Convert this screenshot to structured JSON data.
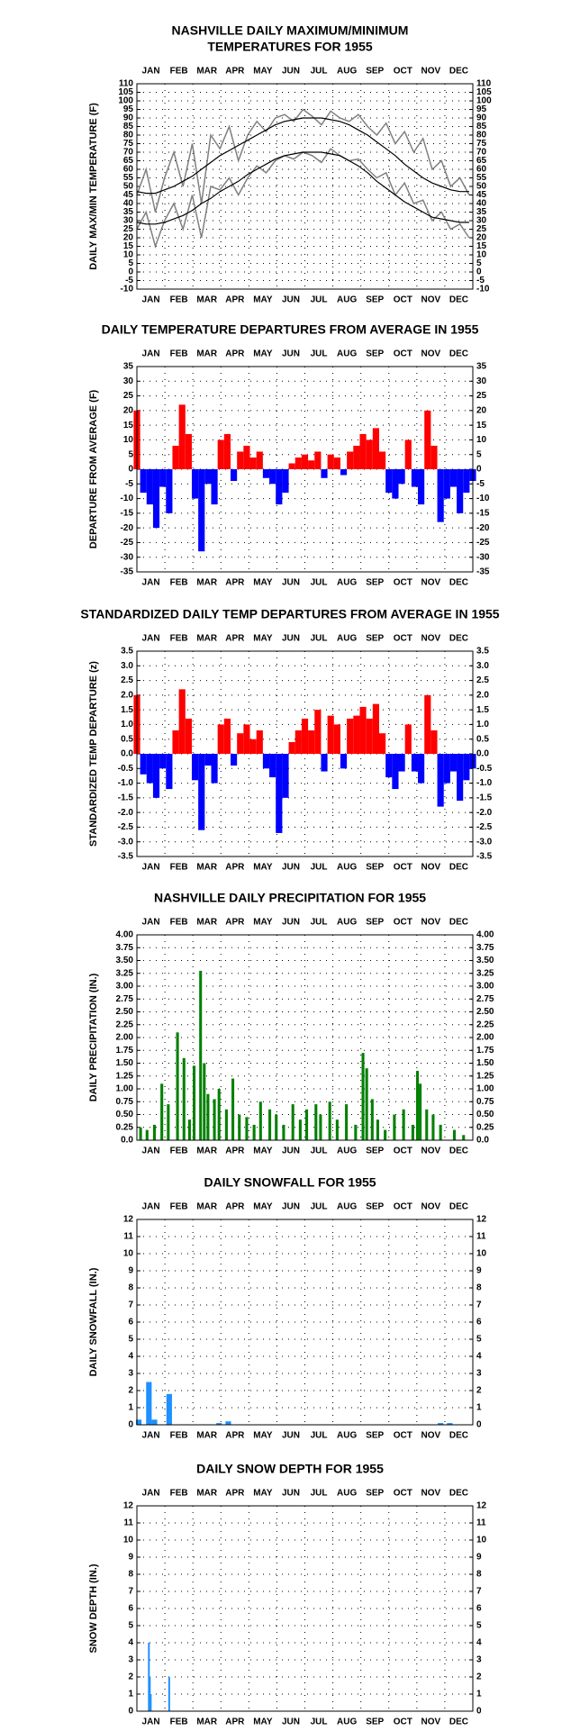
{
  "chart_data": [
    {
      "type": "line",
      "title": [
        "NASHVILLE DAILY MAXIMUM/MINIMUM",
        "TEMPERATURES FOR 1955"
      ],
      "y_label": "DAILY MAX/MIN TEMPERATURE (F)",
      "categories": [
        "JAN",
        "FEB",
        "MAR",
        "APR",
        "MAY",
        "JUN",
        "JUL",
        "AUG",
        "SEP",
        "OCT",
        "NOV",
        "DEC"
      ],
      "xlim": [
        1,
        365
      ],
      "ylim": [
        -10,
        110
      ],
      "yticks": [
        -10,
        -5,
        0,
        5,
        10,
        15,
        20,
        25,
        30,
        35,
        40,
        45,
        50,
        55,
        60,
        65,
        70,
        75,
        80,
        85,
        90,
        95,
        100,
        105,
        110
      ],
      "grid": true,
      "x": [
        1,
        11,
        21,
        31,
        41,
        51,
        61,
        71,
        81,
        91,
        101,
        111,
        121,
        131,
        141,
        151,
        161,
        171,
        181,
        191,
        201,
        211,
        221,
        231,
        241,
        251,
        261,
        271,
        281,
        291,
        301,
        311,
        321,
        331,
        341,
        351,
        361
      ],
      "series": [
        {
          "name": "Daily Max",
          "color": "#808080",
          "values": [
            45,
            60,
            35,
            55,
            70,
            50,
            75,
            40,
            80,
            72,
            85,
            65,
            80,
            88,
            82,
            90,
            92,
            88,
            95,
            91,
            86,
            94,
            90,
            88,
            92,
            85,
            80,
            87,
            75,
            82,
            70,
            78,
            60,
            65,
            50,
            55,
            45
          ]
        },
        {
          "name": "Daily Min",
          "color": "#808080",
          "values": [
            25,
            35,
            15,
            30,
            40,
            25,
            45,
            20,
            50,
            48,
            55,
            45,
            55,
            62,
            58,
            65,
            68,
            66,
            70,
            68,
            64,
            72,
            68,
            65,
            66,
            60,
            55,
            58,
            45,
            52,
            40,
            42,
            30,
            35,
            25,
            28,
            20
          ]
        },
        {
          "name": "Normal Max",
          "color": "#000000",
          "values": [
            47,
            46,
            46,
            48,
            50,
            53,
            56,
            60,
            64,
            68,
            71,
            74,
            77,
            80,
            83,
            86,
            88,
            89,
            90,
            90,
            90,
            89,
            88,
            86,
            83,
            80,
            76,
            72,
            68,
            63,
            59,
            55,
            52,
            50,
            48,
            47,
            47
          ]
        },
        {
          "name": "Normal Min",
          "color": "#000000",
          "values": [
            29,
            28,
            28,
            29,
            31,
            33,
            36,
            40,
            43,
            47,
            50,
            53,
            57,
            60,
            63,
            66,
            68,
            69,
            70,
            70,
            70,
            69,
            68,
            65,
            62,
            58,
            53,
            49,
            45,
            41,
            38,
            35,
            32,
            31,
            30,
            29,
            29
          ]
        }
      ]
    },
    {
      "type": "bar",
      "title": [
        "DAILY TEMPERATURE DEPARTURES FROM AVERAGE IN 1955"
      ],
      "y_label": "DEPARTURE FROM AVERAGE (F)",
      "categories": [
        "JAN",
        "FEB",
        "MAR",
        "APR",
        "MAY",
        "JUN",
        "JUL",
        "AUG",
        "SEP",
        "OCT",
        "NOV",
        "DEC"
      ],
      "xlim": [
        1,
        365
      ],
      "ylim": [
        -35,
        35
      ],
      "yticks": [
        -35,
        -30,
        -25,
        -20,
        -15,
        -10,
        -5,
        0,
        5,
        10,
        15,
        20,
        25,
        30,
        35
      ],
      "grid": true,
      "positive_color": "#ff0000",
      "negative_color": "#0000ff",
      "x": [
        1,
        8,
        15,
        22,
        29,
        36,
        43,
        50,
        57,
        64,
        71,
        78,
        85,
        92,
        99,
        106,
        113,
        120,
        127,
        134,
        141,
        148,
        155,
        162,
        169,
        176,
        183,
        190,
        197,
        204,
        211,
        218,
        225,
        232,
        239,
        246,
        253,
        260,
        267,
        274,
        281,
        288,
        295,
        302,
        309,
        316,
        323,
        330,
        337,
        344,
        351,
        358,
        365
      ],
      "values": [
        20,
        -8,
        -12,
        -20,
        -6,
        -15,
        8,
        22,
        12,
        -10,
        -28,
        -5,
        -12,
        10,
        12,
        -4,
        6,
        8,
        4,
        6,
        -3,
        -5,
        -12,
        -8,
        2,
        4,
        5,
        3,
        6,
        -3,
        5,
        4,
        -2,
        6,
        8,
        12,
        10,
        14,
        6,
        -8,
        -10,
        -5,
        10,
        -6,
        -12,
        20,
        8,
        -18,
        -10,
        -6,
        -15,
        -8,
        -4
      ]
    },
    {
      "type": "bar",
      "title": [
        "STANDARDIZED DAILY TEMP DEPARTURES FROM AVERAGE IN 1955"
      ],
      "y_label": "STANDARDIZED TEMP DEPARTURE (z)",
      "categories": [
        "JAN",
        "FEB",
        "MAR",
        "APR",
        "MAY",
        "JUN",
        "JUL",
        "AUG",
        "SEP",
        "OCT",
        "NOV",
        "DEC"
      ],
      "xlim": [
        1,
        365
      ],
      "ylim": [
        -3.5,
        3.5
      ],
      "yticks": [
        -3.5,
        {
          "value": -3,
          "label": "-3.0"
        },
        -2.5,
        {
          "value": -2,
          "label": "-2.0"
        },
        -1.5,
        {
          "value": -1,
          "label": "-1.0"
        },
        -0.5,
        {
          "value": 0,
          "label": "0.0"
        },
        0.5,
        {
          "value": 1,
          "label": "1.0"
        },
        1.5,
        {
          "value": 2,
          "label": "2.0"
        },
        2.5,
        {
          "value": 3,
          "label": "3.0"
        },
        3.5
      ],
      "grid": true,
      "positive_color": "#ff0000",
      "negative_color": "#0000ff",
      "x": [
        1,
        8,
        15,
        22,
        29,
        36,
        43,
        50,
        57,
        64,
        71,
        78,
        85,
        92,
        99,
        106,
        113,
        120,
        127,
        134,
        141,
        148,
        155,
        162,
        169,
        176,
        183,
        190,
        197,
        204,
        211,
        218,
        225,
        232,
        239,
        246,
        253,
        260,
        267,
        274,
        281,
        288,
        295,
        302,
        309,
        316,
        323,
        330,
        337,
        344,
        351,
        358,
        365
      ],
      "values": [
        2.0,
        -0.7,
        -1.0,
        -1.5,
        -0.5,
        -1.2,
        0.8,
        2.2,
        1.2,
        -0.9,
        -2.6,
        -0.4,
        -1.0,
        1.0,
        1.2,
        -0.4,
        0.7,
        1.0,
        0.5,
        0.8,
        -0.5,
        -0.8,
        -2.7,
        -1.5,
        0.4,
        0.8,
        1.2,
        0.8,
        1.5,
        -0.6,
        1.3,
        1.0,
        -0.5,
        1.2,
        1.3,
        1.6,
        1.2,
        1.7,
        0.7,
        -0.8,
        -1.2,
        -0.6,
        1.0,
        -0.6,
        -1.0,
        2.0,
        0.8,
        -1.8,
        -1.0,
        -0.6,
        -1.6,
        -0.9,
        -0.5
      ]
    },
    {
      "type": "bar",
      "title": [
        "NASHVILLE DAILY PRECIPITATION FOR 1955"
      ],
      "y_label": "DAILY PRECIPITATION (IN.)",
      "categories": [
        "JAN",
        "FEB",
        "MAR",
        "APR",
        "MAY",
        "JUN",
        "JUL",
        "AUG",
        "SEP",
        "OCT",
        "NOV",
        "DEC"
      ],
      "xlim": [
        1,
        365
      ],
      "ylim": [
        0,
        4
      ],
      "yticks": [
        {
          "value": 0,
          "label": "0.0"
        },
        {
          "value": 0.25,
          "label": "0.25"
        },
        {
          "value": 0.5,
          "label": "0.50"
        },
        {
          "value": 0.75,
          "label": "0.75"
        },
        {
          "value": 1,
          "label": "1.00"
        },
        {
          "value": 1.25,
          "label": "1.25"
        },
        {
          "value": 1.5,
          "label": "1.50"
        },
        {
          "value": 1.75,
          "label": "1.75"
        },
        {
          "value": 2,
          "label": "2.00"
        },
        {
          "value": 2.25,
          "label": "2.25"
        },
        {
          "value": 2.5,
          "label": "2.50"
        },
        {
          "value": 2.75,
          "label": "2.75"
        },
        {
          "value": 3,
          "label": "3.00"
        },
        {
          "value": 3.25,
          "label": "3.25"
        },
        {
          "value": 3.5,
          "label": "3.50"
        },
        {
          "value": 3.75,
          "label": "3.75"
        },
        {
          "value": 4,
          "label": "4.00"
        }
      ],
      "grid": true,
      "color": "#008000",
      "x": [
        5,
        12,
        20,
        28,
        35,
        45,
        52,
        58,
        63,
        70,
        74,
        78,
        85,
        90,
        98,
        105,
        112,
        120,
        128,
        135,
        145,
        152,
        160,
        170,
        178,
        185,
        195,
        200,
        210,
        218,
        228,
        238,
        246,
        250,
        256,
        262,
        270,
        280,
        290,
        300,
        305,
        308,
        315,
        322,
        330,
        345,
        355
      ],
      "values": [
        0.25,
        0.2,
        0.3,
        1.1,
        0.7,
        2.1,
        1.6,
        0.4,
        1.45,
        3.3,
        1.5,
        0.9,
        0.8,
        1.0,
        0.6,
        1.2,
        0.5,
        0.45,
        0.3,
        0.75,
        0.6,
        0.5,
        0.3,
        0.7,
        0.4,
        0.6,
        0.7,
        0.5,
        0.75,
        0.4,
        0.7,
        0.3,
        1.7,
        1.4,
        0.8,
        0.4,
        0.2,
        0.5,
        0.6,
        0.3,
        1.35,
        1.1,
        0.6,
        0.5,
        0.3,
        0.2,
        0.1
      ]
    },
    {
      "type": "bar",
      "title": [
        "DAILY SNOWFALL FOR 1955"
      ],
      "y_label": "DAILY SNOWFALL (IN.)",
      "categories": [
        "JAN",
        "FEB",
        "MAR",
        "APR",
        "MAY",
        "JUN",
        "JUL",
        "AUG",
        "SEP",
        "OCT",
        "NOV",
        "DEC"
      ],
      "xlim": [
        1,
        365
      ],
      "ylim": [
        0,
        12
      ],
      "yticks": [
        0,
        1,
        2,
        3,
        4,
        5,
        6,
        7,
        8,
        9,
        10,
        11,
        12
      ],
      "grid": true,
      "color": "#1e90ff",
      "x": [
        3,
        14,
        20,
        36,
        90,
        100,
        330,
        340
      ],
      "values": [
        0.3,
        2.5,
        0.3,
        1.8,
        0.1,
        0.2,
        0.1,
        0.1
      ]
    },
    {
      "type": "bar",
      "title": [
        "DAILY SNOW DEPTH FOR 1955"
      ],
      "y_label": "SNOW DEPTH (IN.)",
      "categories": [
        "JAN",
        "FEB",
        "MAR",
        "APR",
        "MAY",
        "JUN",
        "JUL",
        "AUG",
        "SEP",
        "OCT",
        "NOV",
        "DEC"
      ],
      "xlim": [
        1,
        365
      ],
      "ylim": [
        0,
        12
      ],
      "yticks": [
        0,
        1,
        2,
        3,
        4,
        5,
        6,
        7,
        8,
        9,
        10,
        11,
        12
      ],
      "grid": true,
      "color": "#1e90ff",
      "x": [
        14,
        15,
        16,
        36
      ],
      "values": [
        4,
        2,
        1,
        2
      ]
    }
  ]
}
